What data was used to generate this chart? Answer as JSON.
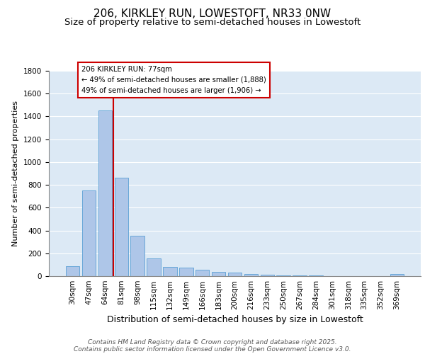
{
  "title1": "206, KIRKLEY RUN, LOWESTOFT, NR33 0NW",
  "title2": "Size of property relative to semi-detached houses in Lowestoft",
  "xlabel": "Distribution of semi-detached houses by size in Lowestoft",
  "ylabel": "Number of semi-detached properties",
  "categories": [
    "30sqm",
    "47sqm",
    "64sqm",
    "81sqm",
    "98sqm",
    "115sqm",
    "132sqm",
    "149sqm",
    "166sqm",
    "183sqm",
    "200sqm",
    "216sqm",
    "233sqm",
    "250sqm",
    "267sqm",
    "284sqm",
    "301sqm",
    "318sqm",
    "335sqm",
    "352sqm",
    "369sqm"
  ],
  "values": [
    90,
    750,
    1450,
    860,
    355,
    155,
    80,
    75,
    55,
    40,
    30,
    18,
    10,
    8,
    8,
    5,
    3,
    2,
    2,
    2,
    18
  ],
  "bar_color": "#aec6e8",
  "bar_edgecolor": "#5a9fd4",
  "vline_x": 2.5,
  "vline_color": "#cc0000",
  "annotation_title": "206 KIRKLEY RUN: 77sqm",
  "annotation_line1": "← 49% of semi-detached houses are smaller (1,888)",
  "annotation_line2": "49% of semi-detached houses are larger (1,906) →",
  "annotation_box_color": "#cc0000",
  "ylim": [
    0,
    1800
  ],
  "yticks": [
    0,
    200,
    400,
    600,
    800,
    1000,
    1200,
    1400,
    1600,
    1800
  ],
  "background_color": "#dce9f5",
  "footer_line1": "Contains HM Land Registry data © Crown copyright and database right 2025.",
  "footer_line2": "Contains public sector information licensed under the Open Government Licence v3.0.",
  "title1_fontsize": 11,
  "title2_fontsize": 9.5,
  "xlabel_fontsize": 9,
  "ylabel_fontsize": 8,
  "tick_fontsize": 7.5,
  "footer_fontsize": 6.5
}
